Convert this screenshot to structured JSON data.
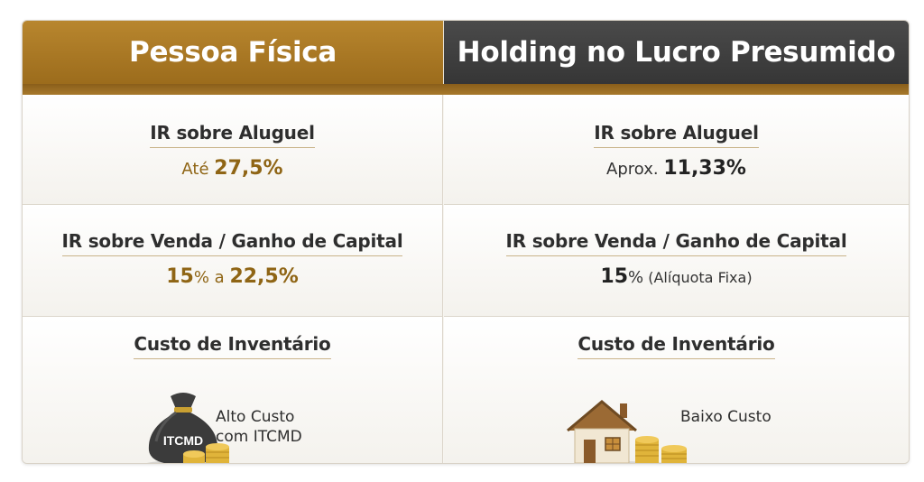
{
  "headers": {
    "left": "Pessoa Física",
    "right": "Holding no Lucro Presumido"
  },
  "rows": {
    "rent": {
      "title": "IR sobre Aluguel",
      "left": {
        "prefix": "Até ",
        "value": "27,5%"
      },
      "right": {
        "prefix": "Aprox. ",
        "value": "11,33%"
      }
    },
    "sale": {
      "title": "IR sobre Venda / Ganho de Capital",
      "left": {
        "v1": "15",
        "pct1": "%",
        "mid": " a ",
        "v2": "22,5%"
      },
      "right": {
        "v1": "15",
        "pct1": "%",
        "note": " (Alíquota Fixa)"
      }
    },
    "inventory": {
      "title": "Custo de Inventário",
      "left": {
        "line1": "Alto Custo",
        "line2": "com ITCMD",
        "bag_label": "ITCMD"
      },
      "right": {
        "line1": "Baixo Custo"
      }
    }
  },
  "colors": {
    "gold_header": "#a87724",
    "dark_header": "#404040",
    "gold_text": "#8f6515",
    "coin": "#e0b43a"
  }
}
